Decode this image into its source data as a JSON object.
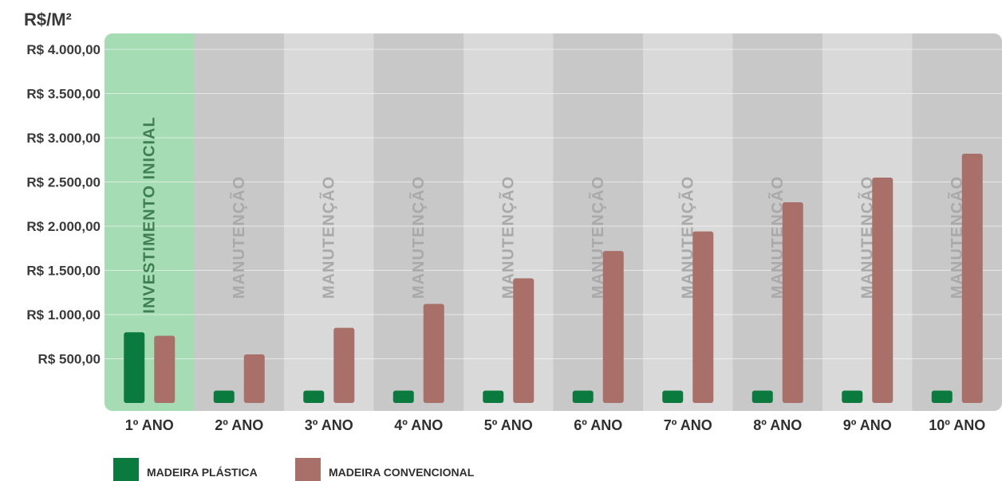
{
  "chart_data": {
    "type": "bar",
    "unit_label": "R$/M²",
    "categories": [
      "1º ANO",
      "2º ANO",
      "3º ANO",
      "4º ANO",
      "5º ANO",
      "6º ANO",
      "7º ANO",
      "8º ANO",
      "9º ANO",
      "10º ANO"
    ],
    "band_labels": [
      "INVESTIMENTO INICIAL",
      "MANUTENÇÃO",
      "MANUTENÇÃO",
      "MANUTENÇÃO",
      "MANUTENÇÃO",
      "MANUTENÇÃO",
      "MANUTENÇÃO",
      "MANUTENÇÃO",
      "MANUTENÇÃO",
      "MANUTENÇÃO"
    ],
    "y_ticks": [
      500,
      1000,
      1500,
      2000,
      2500,
      3000,
      3500,
      4000
    ],
    "y_tick_labels": [
      "R$ 500,00",
      "R$ 1.000,00",
      "R$ 1.500,00",
      "R$ 2.000,00",
      "R$ 2.500,00",
      "R$ 3.000,00",
      "R$ 3.500,00",
      "R$ 4.000,00"
    ],
    "ylim": [
      0,
      4300
    ],
    "grid": true,
    "legend_position": "bottom-left",
    "series": [
      {
        "name": "MADEIRA PLÁSTICA",
        "color": "#0b7a3e",
        "values": [
          800,
          140,
          140,
          140,
          140,
          140,
          140,
          140,
          140,
          140
        ]
      },
      {
        "name": "MADEIRA CONVENCIONAL",
        "color": "#a87068",
        "values": [
          760,
          550,
          850,
          1120,
          1410,
          1720,
          1940,
          2270,
          2550,
          2820
        ]
      }
    ],
    "colors": {
      "first_band": "#a6dcb3",
      "band_dark": "#c8c8c8",
      "band_light": "#d9d9d9",
      "first_band_text": "#3f7f52",
      "band_text": "#a9a9a9"
    }
  }
}
